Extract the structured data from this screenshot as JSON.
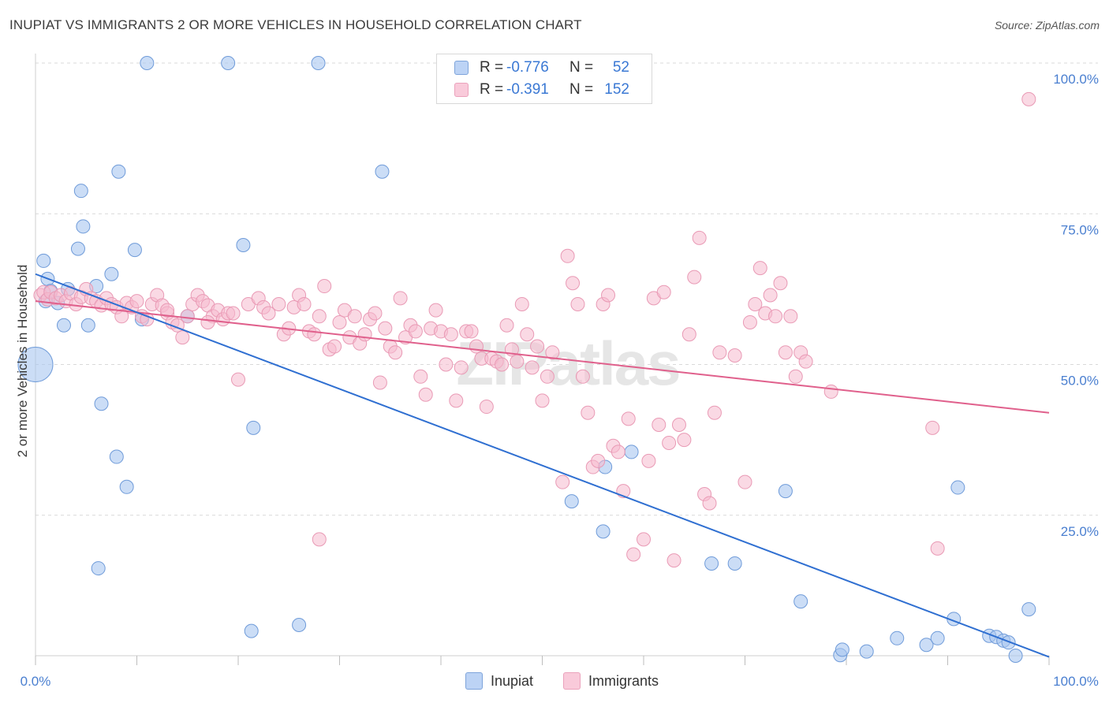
{
  "title": "INUPIAT VS IMMIGRANTS 2 OR MORE VEHICLES IN HOUSEHOLD CORRELATION CHART",
  "source": "Source: ZipAtlas.com",
  "watermark": "ZIPatlas",
  "legend": {
    "rows": [
      {
        "r_label": "R =",
        "r_value": "-0.776",
        "n_label": "N =",
        "n_value": "52"
      },
      {
        "r_label": "R =",
        "r_value": "-0.391",
        "n_label": "N =",
        "n_value": "152"
      }
    ]
  },
  "bottom_legend": {
    "inupiat": "Inupiat",
    "immigrants": "Immigrants"
  },
  "colors": {
    "inupiat_fill": "#a9c6f0",
    "inupiat_stroke": "#6f9bd9",
    "inupiat_line": "#2f6fd1",
    "immigrants_fill": "#f6b9cd",
    "immigrants_stroke": "#e99ab5",
    "immigrants_line": "#e0608c",
    "grid": "#d9d9d9",
    "axis_text": "#4a7fd0"
  },
  "chart_data": {
    "type": "scatter",
    "title": "INUPIAT VS IMMIGRANTS 2 OR MORE VEHICLES IN HOUSEHOLD CORRELATION CHART",
    "xlabel": "",
    "ylabel": "2 or more Vehicles in Household",
    "xlim": [
      0,
      100
    ],
    "ylim": [
      0,
      103
    ],
    "x_tick_labels": [
      "0.0%",
      "100.0%"
    ],
    "y_ticks": [
      25,
      50,
      75,
      100
    ],
    "y_tick_labels": [
      "25.0%",
      "50.0%",
      "75.0%",
      "100.0%"
    ],
    "grid": "horizontal dashed",
    "legend_placement": "top-center",
    "series": [
      {
        "name": "Inupiat",
        "trendline": {
          "x0": 0,
          "y0": 65.0,
          "x1": 100,
          "y1": 1.5
        },
        "points": [
          [
            0.8,
            67.2
          ],
          [
            1.2,
            64.2
          ],
          [
            1.5,
            62.2
          ],
          [
            2.2,
            60.2
          ],
          [
            3.2,
            62.5
          ],
          [
            2.8,
            56.5
          ],
          [
            5.2,
            56.5
          ],
          [
            4.2,
            69.2
          ],
          [
            4.5,
            78.8
          ],
          [
            4.7,
            72.9
          ],
          [
            6.0,
            63.0
          ],
          [
            7.5,
            65.0
          ],
          [
            8.2,
            82.0
          ],
          [
            9.8,
            69.0
          ],
          [
            10.5,
            57.5
          ],
          [
            11.0,
            100.0
          ],
          [
            15.0,
            58.0
          ],
          [
            19.0,
            100.0
          ],
          [
            20.5,
            69.8
          ],
          [
            27.9,
            100.0
          ],
          [
            21.5,
            39.5
          ],
          [
            34.2,
            82.0
          ],
          [
            6.5,
            43.5
          ],
          [
            8.0,
            34.7
          ],
          [
            9.0,
            29.7
          ],
          [
            6.2,
            16.2
          ],
          [
            21.3,
            5.8
          ],
          [
            26.0,
            6.8
          ],
          [
            0.0,
            50.0
          ],
          [
            52.9,
            27.3
          ],
          [
            56.2,
            33.0
          ],
          [
            58.8,
            35.5
          ],
          [
            56.0,
            22.3
          ],
          [
            66.7,
            17.0
          ],
          [
            69.0,
            17.0
          ],
          [
            74.0,
            29.0
          ],
          [
            75.5,
            10.7
          ],
          [
            79.4,
            1.8
          ],
          [
            79.6,
            2.7
          ],
          [
            82.0,
            2.4
          ],
          [
            85.0,
            4.6
          ],
          [
            87.9,
            3.5
          ],
          [
            89.0,
            4.6
          ],
          [
            90.6,
            7.8
          ],
          [
            91.0,
            29.6
          ],
          [
            94.1,
            5.0
          ],
          [
            94.8,
            4.8
          ],
          [
            95.5,
            4.2
          ],
          [
            96.0,
            3.9
          ],
          [
            96.7,
            1.7
          ],
          [
            98.0,
            9.4
          ],
          [
            1.0,
            60.5
          ]
        ]
      },
      {
        "name": "Immigrants",
        "trendline": {
          "x0": 0,
          "y0": 60.5,
          "x1": 100,
          "y1": 42.0
        },
        "points": [
          [
            0.5,
            61.5
          ],
          [
            0.8,
            62.0
          ],
          [
            1.2,
            60.8
          ],
          [
            1.5,
            62.0
          ],
          [
            2.0,
            61.0
          ],
          [
            2.5,
            61.5
          ],
          [
            3.0,
            60.5
          ],
          [
            3.5,
            61.8
          ],
          [
            4.0,
            60.0
          ],
          [
            4.5,
            61.2
          ],
          [
            5.0,
            62.5
          ],
          [
            5.5,
            61.0
          ],
          [
            6.0,
            60.5
          ],
          [
            6.5,
            59.8
          ],
          [
            7.0,
            61.0
          ],
          [
            7.5,
            60.0
          ],
          [
            8.0,
            59.5
          ],
          [
            8.5,
            58.0
          ],
          [
            9.0,
            60.2
          ],
          [
            9.5,
            59.5
          ],
          [
            10.0,
            60.5
          ],
          [
            10.5,
            58.0
          ],
          [
            11.0,
            57.5
          ],
          [
            11.5,
            60.0
          ],
          [
            12.0,
            61.5
          ],
          [
            12.5,
            59.8
          ],
          [
            13.0,
            58.5
          ],
          [
            13.5,
            57.0
          ],
          [
            14.0,
            56.5
          ],
          [
            14.5,
            54.5
          ],
          [
            15.0,
            58.0
          ],
          [
            15.5,
            60.0
          ],
          [
            16.0,
            61.5
          ],
          [
            16.5,
            60.5
          ],
          [
            17.0,
            59.8
          ],
          [
            17.5,
            58.0
          ],
          [
            18.0,
            59.0
          ],
          [
            18.5,
            57.5
          ],
          [
            19.0,
            58.5
          ],
          [
            19.5,
            58.5
          ],
          [
            20.0,
            47.5
          ],
          [
            21.0,
            60.0
          ],
          [
            22.0,
            61.0
          ],
          [
            22.5,
            59.5
          ],
          [
            23.0,
            58.5
          ],
          [
            24.0,
            60.0
          ],
          [
            24.5,
            55.0
          ],
          [
            25.0,
            56.0
          ],
          [
            25.5,
            59.5
          ],
          [
            26.0,
            61.5
          ],
          [
            26.5,
            60.0
          ],
          [
            27.0,
            55.5
          ],
          [
            27.5,
            55.0
          ],
          [
            28.0,
            58.0
          ],
          [
            28.5,
            63.0
          ],
          [
            29.0,
            52.5
          ],
          [
            29.5,
            53.0
          ],
          [
            30.0,
            57.0
          ],
          [
            30.5,
            59.0
          ],
          [
            31.0,
            54.5
          ],
          [
            31.5,
            58.0
          ],
          [
            32.0,
            53.5
          ],
          [
            32.5,
            55.0
          ],
          [
            33.0,
            57.5
          ],
          [
            33.5,
            58.5
          ],
          [
            34.0,
            47.0
          ],
          [
            34.5,
            56.0
          ],
          [
            35.0,
            53.0
          ],
          [
            35.5,
            52.0
          ],
          [
            36.0,
            61.0
          ],
          [
            36.5,
            54.5
          ],
          [
            37.0,
            56.5
          ],
          [
            37.5,
            55.5
          ],
          [
            38.0,
            48.0
          ],
          [
            38.5,
            45.0
          ],
          [
            39.0,
            56.0
          ],
          [
            39.5,
            59.0
          ],
          [
            40.0,
            55.5
          ],
          [
            40.5,
            50.0
          ],
          [
            41.0,
            55.0
          ],
          [
            41.5,
            44.0
          ],
          [
            42.0,
            49.5
          ],
          [
            42.5,
            55.5
          ],
          [
            43.0,
            55.5
          ],
          [
            43.5,
            53.0
          ],
          [
            44.0,
            51.0
          ],
          [
            44.5,
            43.0
          ],
          [
            45.0,
            51.0
          ],
          [
            45.5,
            50.5
          ],
          [
            46.0,
            50.0
          ],
          [
            46.5,
            56.5
          ],
          [
            47.0,
            52.5
          ],
          [
            47.5,
            50.5
          ],
          [
            48.0,
            60.0
          ],
          [
            48.5,
            55.0
          ],
          [
            49.0,
            49.5
          ],
          [
            49.5,
            53.0
          ],
          [
            50.0,
            44.0
          ],
          [
            50.5,
            48.0
          ],
          [
            51.0,
            52.0
          ],
          [
            52.0,
            30.5
          ],
          [
            52.5,
            68.0
          ],
          [
            53.0,
            63.5
          ],
          [
            53.5,
            60.0
          ],
          [
            54.0,
            48.0
          ],
          [
            54.5,
            42.0
          ],
          [
            55.0,
            33.0
          ],
          [
            55.5,
            34.0
          ],
          [
            56.0,
            60.0
          ],
          [
            56.5,
            61.5
          ],
          [
            57.0,
            36.5
          ],
          [
            57.5,
            35.5
          ],
          [
            58.0,
            29.0
          ],
          [
            58.5,
            41.0
          ],
          [
            59.0,
            18.5
          ],
          [
            60.0,
            21.0
          ],
          [
            60.5,
            34.0
          ],
          [
            61.0,
            61.0
          ],
          [
            61.5,
            40.0
          ],
          [
            62.0,
            62.0
          ],
          [
            62.5,
            37.0
          ],
          [
            63.0,
            17.5
          ],
          [
            63.5,
            40.0
          ],
          [
            64.0,
            37.5
          ],
          [
            64.5,
            55.0
          ],
          [
            65.0,
            64.5
          ],
          [
            65.5,
            71.0
          ],
          [
            66.0,
            28.5
          ],
          [
            66.5,
            27.0
          ],
          [
            67.0,
            42.0
          ],
          [
            67.5,
            52.0
          ],
          [
            69.0,
            51.5
          ],
          [
            70.0,
            30.5
          ],
          [
            70.5,
            57.0
          ],
          [
            71.0,
            60.0
          ],
          [
            71.5,
            66.0
          ],
          [
            72.0,
            58.5
          ],
          [
            72.5,
            61.5
          ],
          [
            73.0,
            58.0
          ],
          [
            73.5,
            63.5
          ],
          [
            74.0,
            52.0
          ],
          [
            74.5,
            58.0
          ],
          [
            75.0,
            48.0
          ],
          [
            75.5,
            52.0
          ],
          [
            76.0,
            50.5
          ],
          [
            78.5,
            45.5
          ],
          [
            28.0,
            21.0
          ],
          [
            88.5,
            39.5
          ],
          [
            89.0,
            19.5
          ],
          [
            98.0,
            94.0
          ],
          [
            13.0,
            59.0
          ],
          [
            17.0,
            57.0
          ]
        ]
      }
    ]
  }
}
